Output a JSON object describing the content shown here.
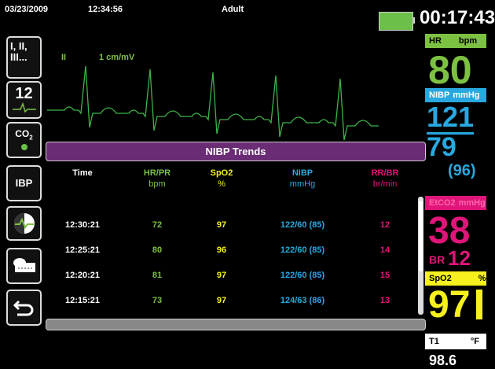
{
  "header": {
    "date": "03/23/2009",
    "time": "12:34:56",
    "patient": "Adult",
    "timer": "00:17:43"
  },
  "sidebar": {
    "leads": "I, II, III...",
    "twelve_lead": "12",
    "co2": {
      "label": "CO",
      "subscript": "2"
    },
    "ibp": "IBP"
  },
  "ecg": {
    "lead": "II",
    "scale": "1 cm/mV"
  },
  "trends": {
    "title": "NIBP Trends",
    "columns": [
      {
        "label": "Time",
        "unit": ""
      },
      {
        "label": "HR/PR",
        "unit": "bpm"
      },
      {
        "label": "SpO2",
        "unit": "%"
      },
      {
        "label": "NIBP",
        "unit": "mmHg"
      },
      {
        "label": "RR/BR",
        "unit": "br/min"
      }
    ],
    "rows": [
      [
        "12:30:21",
        "72",
        "97",
        "122/60 (85)",
        "12"
      ],
      [
        "12:25:21",
        "80",
        "96",
        "122/60 (85)",
        "14"
      ],
      [
        "12:20:21",
        "81",
        "97",
        "122/60 (85)",
        "15"
      ],
      [
        "12:15:21",
        "73",
        "97",
        "124/63 (86)",
        "13"
      ]
    ]
  },
  "vitals": {
    "hr": {
      "label": "HR",
      "unit": "bpm",
      "value": "80"
    },
    "nibp": {
      "label": "NIBP",
      "unit": "mmHg",
      "systolic": "121",
      "diastolic": "79",
      "mean": "(96)"
    },
    "etco2": {
      "label": "EtCO2",
      "unit": "mmHg",
      "value": "38",
      "br_label": "BR",
      "br_value": "12"
    },
    "spo2": {
      "label": "SpO2",
      "unit": "%",
      "value": "97"
    },
    "temp": {
      "label": "T1",
      "unit": "°F",
      "value": "98.6"
    }
  }
}
